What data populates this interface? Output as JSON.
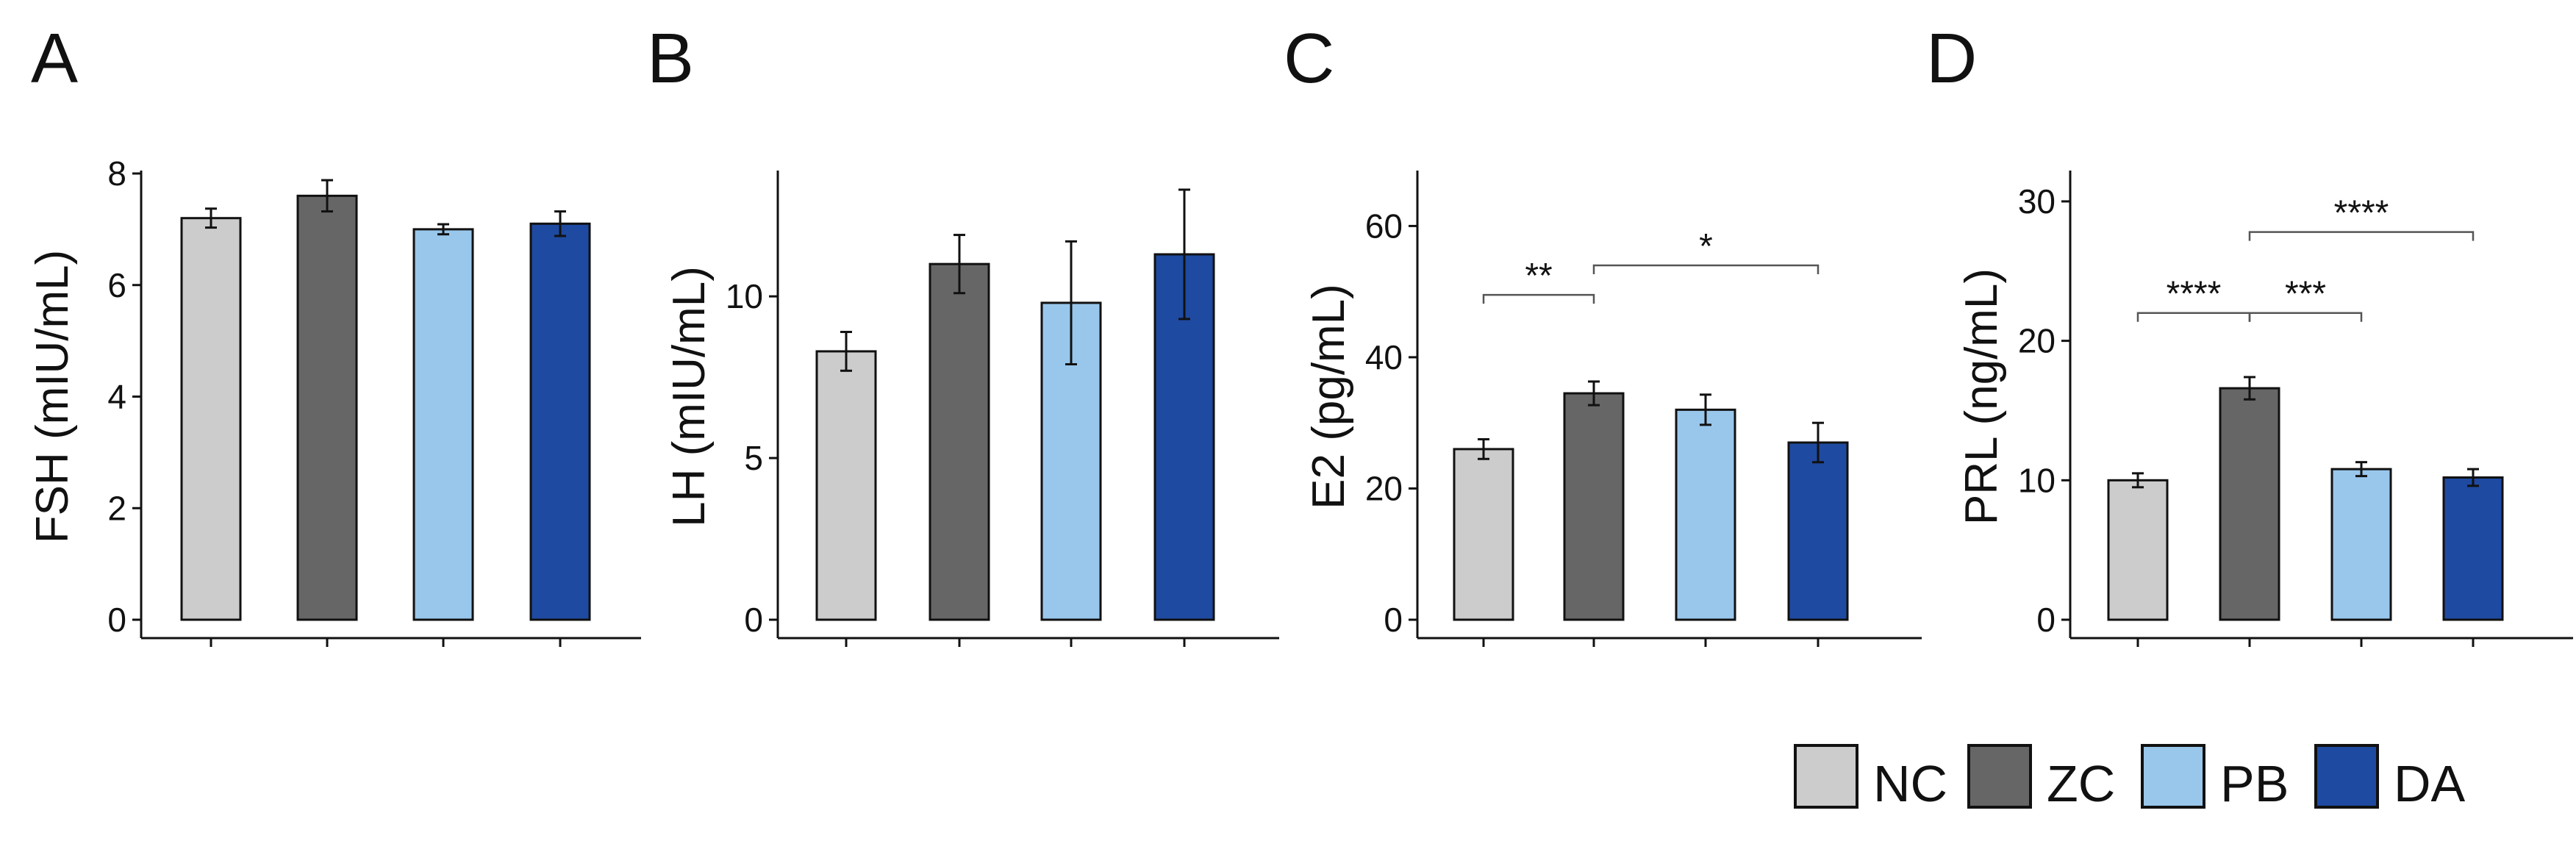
{
  "figure": {
    "legend": [
      {
        "label": "NC",
        "color": "#cccccc"
      },
      {
        "label": "ZC",
        "color": "#666666"
      },
      {
        "label": "PB",
        "color": "#99c7ec"
      },
      {
        "label": "DA",
        "color": "#1f4aa1"
      }
    ]
  },
  "chart_data": [
    {
      "panel": "A",
      "type": "bar",
      "ylabel": "FSH (mIU/mL)",
      "categories": [
        "NC",
        "ZC",
        "PB",
        "DA"
      ],
      "values": [
        7.2,
        7.6,
        7.0,
        7.1
      ],
      "errors": [
        0.17,
        0.28,
        0.09,
        0.22
      ],
      "colors": [
        "#cccccc",
        "#666666",
        "#99c7ec",
        "#1f4aa1"
      ],
      "ylim": [
        0,
        8
      ],
      "yticks": [
        0,
        2,
        4,
        6,
        8
      ],
      "yticklabels": [
        "0",
        "2",
        "4",
        "6",
        "8"
      ],
      "significance": []
    },
    {
      "panel": "B",
      "type": "bar",
      "ylabel": "LH (mIU/mL)",
      "categories": [
        "NC",
        "ZC",
        "PB",
        "DA"
      ],
      "values": [
        8.3,
        11.0,
        9.8,
        11.3
      ],
      "errors": [
        0.6,
        0.9,
        1.9,
        2.0
      ],
      "colors": [
        "#cccccc",
        "#666666",
        "#99c7ec",
        "#1f4aa1"
      ],
      "ylim": [
        0,
        13.8
      ],
      "yticks": [
        0,
        5,
        10
      ],
      "yticklabels": [
        "0",
        "5",
        "10"
      ],
      "significance": []
    },
    {
      "panel": "C",
      "type": "bar",
      "ylabel": "E2 (pg/mL)",
      "categories": [
        "NC",
        "ZC",
        "PB",
        "DA"
      ],
      "values": [
        26.0,
        34.5,
        32.0,
        27.0
      ],
      "errors": [
        1.5,
        1.8,
        2.3,
        3.0
      ],
      "colors": [
        "#cccccc",
        "#666666",
        "#99c7ec",
        "#1f4aa1"
      ],
      "ylim": [
        0,
        68
      ],
      "yticks": [
        0,
        20,
        40,
        60
      ],
      "yticklabels": [
        "0",
        "20",
        "40",
        "60"
      ],
      "significance": [
        {
          "from": 0,
          "to": 1,
          "y": 49.5,
          "label": "**"
        },
        {
          "from": 1,
          "to": 3,
          "y": 54.0,
          "label": "*"
        }
      ]
    },
    {
      "panel": "D",
      "type": "bar",
      "ylabel": "PRL (ng/mL)",
      "categories": [
        "NC",
        "ZC",
        "PB",
        "DA"
      ],
      "values": [
        10.0,
        16.6,
        10.8,
        10.2
      ],
      "errors": [
        0.5,
        0.8,
        0.5,
        0.6
      ],
      "colors": [
        "#cccccc",
        "#666666",
        "#99c7ec",
        "#1f4aa1"
      ],
      "ylim": [
        0,
        32
      ],
      "yticks": [
        0,
        10,
        20,
        30
      ],
      "yticklabels": [
        "0",
        "10",
        "20",
        "30"
      ],
      "significance": [
        {
          "from": 0,
          "to": 1,
          "y": 22.0,
          "label": "****"
        },
        {
          "from": 1,
          "to": 2,
          "y": 22.0,
          "label": "***"
        },
        {
          "from": 1,
          "to": 3,
          "y": 27.8,
          "label": "****"
        }
      ]
    }
  ]
}
